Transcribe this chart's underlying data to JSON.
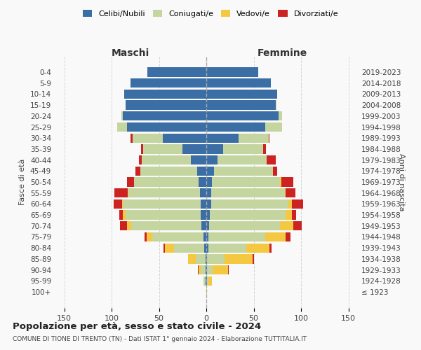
{
  "age_groups": [
    "100+",
    "95-99",
    "90-94",
    "85-89",
    "80-84",
    "75-79",
    "70-74",
    "65-69",
    "60-64",
    "55-59",
    "50-54",
    "45-49",
    "40-44",
    "35-39",
    "30-34",
    "25-29",
    "20-24",
    "15-19",
    "10-14",
    "5-9",
    "0-4"
  ],
  "birth_years": [
    "≤ 1923",
    "1924-1928",
    "1929-1933",
    "1934-1938",
    "1939-1943",
    "1944-1948",
    "1949-1953",
    "1954-1958",
    "1959-1963",
    "1964-1968",
    "1969-1973",
    "1974-1978",
    "1979-1983",
    "1984-1988",
    "1989-1993",
    "1994-1998",
    "1999-2003",
    "2004-2008",
    "2009-2013",
    "2014-2018",
    "2019-2023"
  ],
  "male": {
    "celibi": [
      0,
      1,
      1,
      1,
      2,
      3,
      5,
      6,
      6,
      7,
      8,
      10,
      16,
      25,
      46,
      84,
      88,
      85,
      87,
      80,
      62
    ],
    "coniugati": [
      0,
      2,
      5,
      10,
      32,
      54,
      74,
      79,
      82,
      75,
      68,
      60,
      52,
      42,
      32,
      10,
      2,
      0,
      0,
      0,
      0
    ],
    "vedovi": [
      0,
      0,
      2,
      8,
      10,
      6,
      5,
      3,
      1,
      1,
      0,
      0,
      0,
      0,
      0,
      0,
      0,
      0,
      0,
      0,
      0
    ],
    "divorziati": [
      0,
      0,
      1,
      0,
      1,
      2,
      7,
      4,
      9,
      14,
      8,
      5,
      3,
      2,
      2,
      0,
      0,
      0,
      0,
      0,
      0
    ]
  },
  "female": {
    "nubili": [
      0,
      1,
      1,
      1,
      2,
      2,
      3,
      4,
      5,
      5,
      6,
      8,
      12,
      18,
      34,
      62,
      76,
      73,
      75,
      68,
      55
    ],
    "coniugate": [
      0,
      1,
      6,
      18,
      40,
      60,
      75,
      80,
      82,
      78,
      72,
      62,
      52,
      42,
      32,
      18,
      4,
      1,
      0,
      0,
      0
    ],
    "vedove": [
      1,
      4,
      16,
      30,
      25,
      22,
      14,
      6,
      3,
      1,
      1,
      0,
      0,
      0,
      0,
      0,
      0,
      0,
      0,
      0,
      0
    ],
    "divorziate": [
      0,
      0,
      1,
      1,
      2,
      5,
      9,
      5,
      12,
      10,
      13,
      5,
      9,
      3,
      1,
      0,
      0,
      0,
      0,
      0,
      0
    ]
  },
  "colors": {
    "celibi_nubili": "#3a6ea5",
    "coniugati": "#c5d5a0",
    "vedovi": "#f5c842",
    "divorziati": "#cc2222"
  },
  "title": "Popolazione per età, sesso e stato civile - 2024",
  "subtitle": "COMUNE DI TIONE DI TRENTO (TN) - Dati ISTAT 1° gennaio 2024 - Elaborazione TUTTITALIA.IT",
  "xlabel_left": "Maschi",
  "xlabel_right": "Femmine",
  "ylabel_left": "Fasce di età",
  "ylabel_right": "Anni di nascita",
  "xlim": 160,
  "bg_color": "#f9f9f9",
  "grid_color": "#cccccc"
}
